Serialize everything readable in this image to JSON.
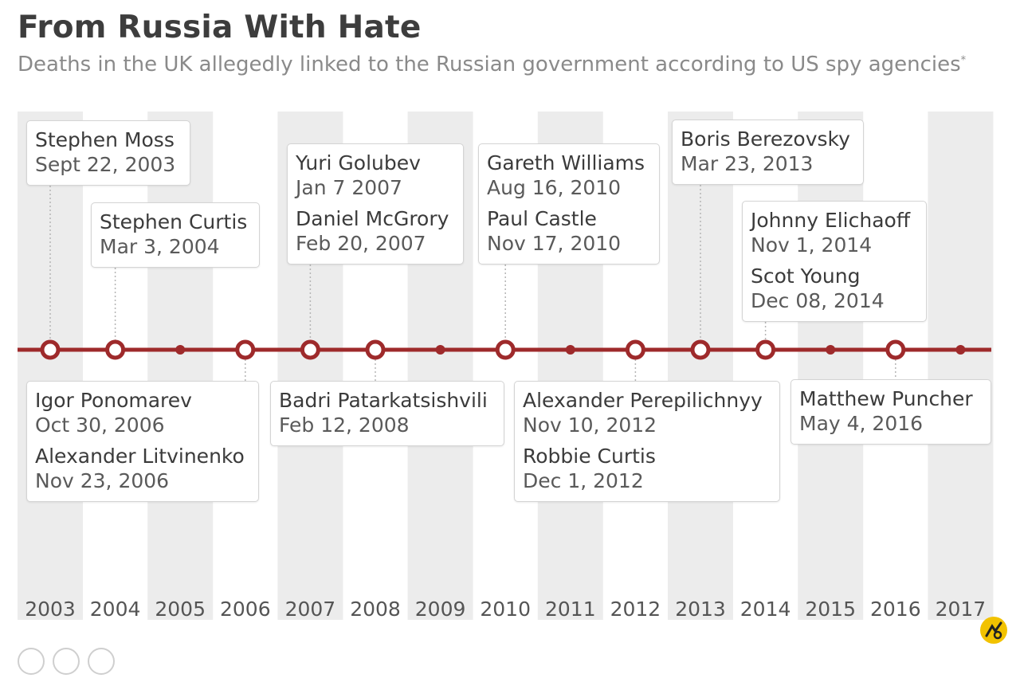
{
  "title": "From Russia With Hate",
  "subtitle": "Deaths in the UK allegedly linked to the Russian government according to US spy agencies",
  "subtitle_mark": "*",
  "colors": {
    "timeline": "#9e2a2b",
    "band": "#ececec",
    "text": "#3a3a3a"
  },
  "badge_icon": "statista-logo-icon",
  "chart_data": {
    "type": "timeline",
    "x": [
      "2003",
      "2004",
      "2005",
      "2006",
      "2007",
      "2008",
      "2009",
      "2010",
      "2011",
      "2012",
      "2013",
      "2014",
      "2015",
      "2016",
      "2017"
    ],
    "events": [
      {
        "name": "Stephen Moss",
        "date": "Sept 22, 2003",
        "year": "2003"
      },
      {
        "name": "Stephen Curtis",
        "date": "Mar 3, 2004",
        "year": "2004"
      },
      {
        "name": "Igor Ponomarev",
        "date": "Oct 30, 2006",
        "year": "2006"
      },
      {
        "name": "Alexander Litvinenko",
        "date": "Nov 23, 2006",
        "year": "2006"
      },
      {
        "name": "Yuri Golubev",
        "date": "Jan 7 2007",
        "year": "2007"
      },
      {
        "name": "Daniel McGrory",
        "date": "Feb 20, 2007",
        "year": "2007"
      },
      {
        "name": "Badri Patarkatsishvili",
        "date": "Feb 12, 2008",
        "year": "2008"
      },
      {
        "name": "Gareth Williams",
        "date": "Aug 16, 2010",
        "year": "2010"
      },
      {
        "name": "Paul Castle",
        "date": "Nov 17, 2010",
        "year": "2010"
      },
      {
        "name": "Alexander Perepilichnyy",
        "date": "Nov 10, 2012",
        "year": "2012"
      },
      {
        "name": "Robbie Curtis",
        "date": "Dec 1, 2012",
        "year": "2012"
      },
      {
        "name": "Boris Berezovsky",
        "date": "Mar 23, 2013",
        "year": "2013"
      },
      {
        "name": "Johnny Elichaoff",
        "date": "Nov 1, 2014",
        "year": "2014"
      },
      {
        "name": "Scot Young",
        "date": "Dec 08, 2014",
        "year": "2014"
      },
      {
        "name": "Matthew Puncher",
        "date": "May 4, 2016",
        "year": "2016"
      }
    ],
    "cards": [
      {
        "year": "2003",
        "side": "above",
        "events": [
          0
        ]
      },
      {
        "year": "2004",
        "side": "above",
        "events": [
          1
        ]
      },
      {
        "year": "2006",
        "side": "below",
        "events": [
          2,
          3
        ]
      },
      {
        "year": "2007",
        "side": "above",
        "events": [
          4,
          5
        ]
      },
      {
        "year": "2008",
        "side": "below",
        "events": [
          6
        ]
      },
      {
        "year": "2010",
        "side": "above",
        "events": [
          7,
          8
        ]
      },
      {
        "year": "2012",
        "side": "below",
        "events": [
          9,
          10
        ]
      },
      {
        "year": "2013",
        "side": "above",
        "events": [
          11
        ]
      },
      {
        "year": "2014",
        "side": "above",
        "events": [
          12,
          13
        ]
      },
      {
        "year": "2016",
        "side": "below",
        "events": [
          14
        ]
      }
    ]
  }
}
